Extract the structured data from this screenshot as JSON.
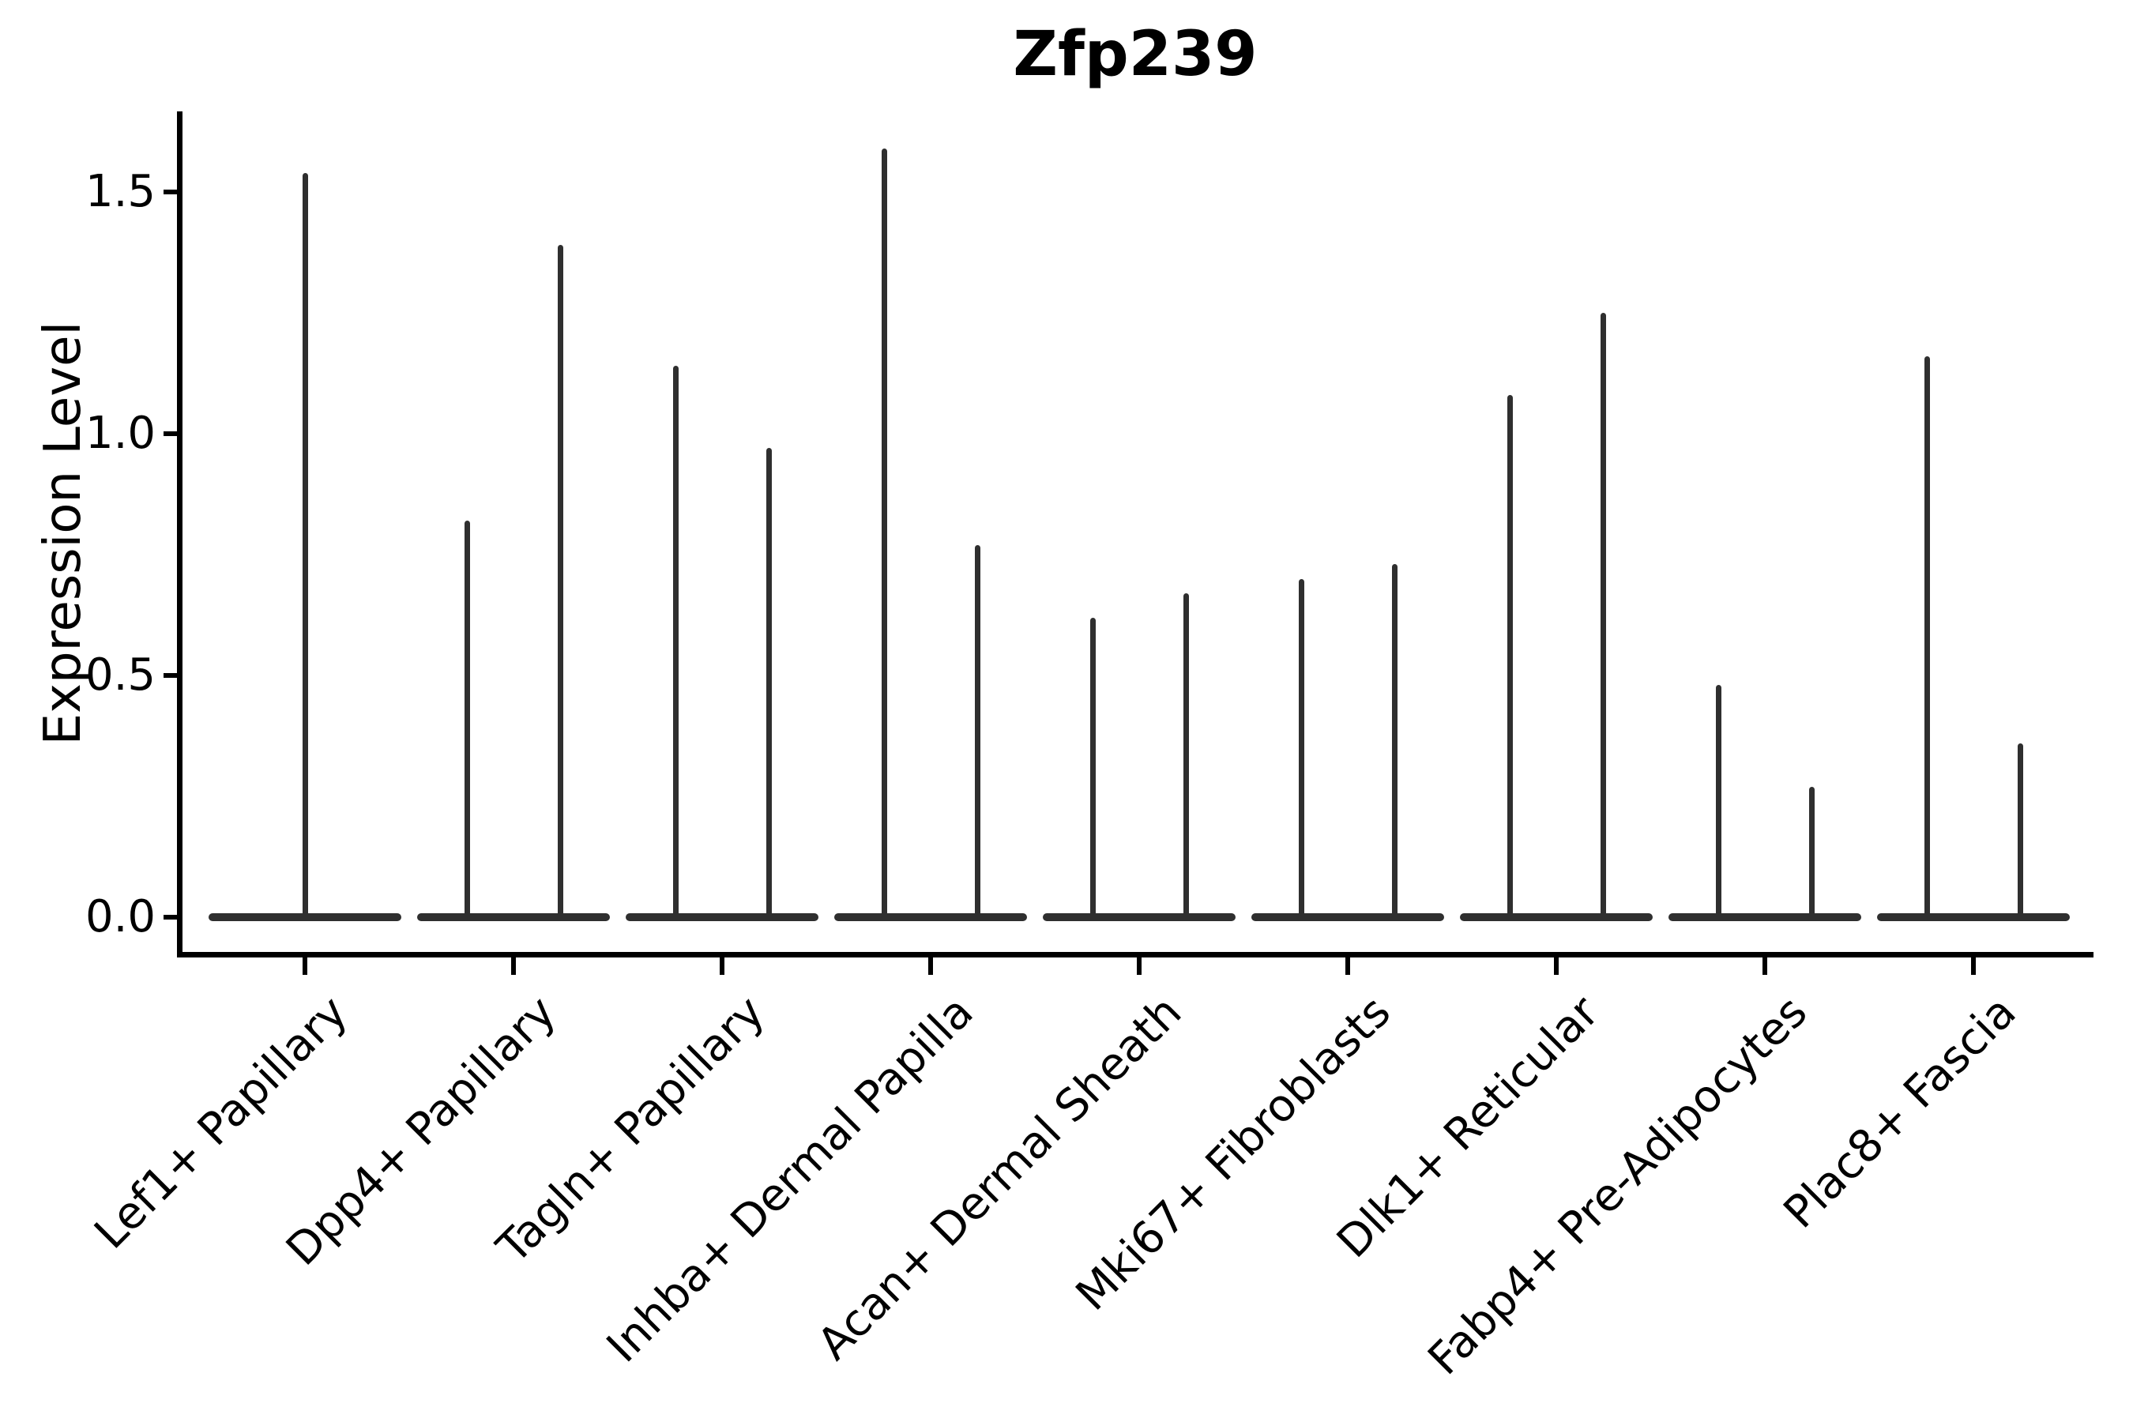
{
  "chart_data": {
    "type": "violin",
    "title": "Zfp239",
    "ylabel": "Expression Level",
    "xlabel": "",
    "ylim": [
      -0.08,
      1.67
    ],
    "yticks": [
      {
        "label": "0.0",
        "value": 0.0
      },
      {
        "label": "0.5",
        "value": 0.5
      },
      {
        "label": "1.0",
        "value": 1.0
      },
      {
        "label": "1.5",
        "value": 1.5
      }
    ],
    "baseline_value": 0.0,
    "violin_shape": "flat-at-zero-with-thin-spike-to-max",
    "violin_color": "#2f2f2f",
    "axis_color": "#000000",
    "legend": "none",
    "grid": "off",
    "xtick_label_rotation_deg": 45,
    "categories": [
      {
        "label": "Lef1+ Papillary",
        "spike_max_values": [
          1.54
        ]
      },
      {
        "label": "Dpp4+ Papillary",
        "spike_max_values": [
          0.82,
          1.39
        ]
      },
      {
        "label": "Tagln+ Papillary",
        "spike_max_values": [
          1.14,
          0.97
        ]
      },
      {
        "label": "Inhba+ Dermal Papilla",
        "spike_max_values": [
          1.59,
          0.77
        ]
      },
      {
        "label": "Acan+ Dermal Sheath",
        "spike_max_values": [
          0.62,
          0.67
        ]
      },
      {
        "label": "Mki67+ Fibroblasts",
        "spike_max_values": [
          0.7,
          0.73
        ]
      },
      {
        "label": "Dlk1+ Reticular",
        "spike_max_values": [
          1.08,
          1.25
        ]
      },
      {
        "label": "Fabp4+ Pre-Adipocytes",
        "spike_max_values": [
          0.48,
          0.27
        ]
      },
      {
        "label": "Plac8+ Fascia",
        "spike_max_values": [
          1.16,
          0.36
        ]
      }
    ]
  }
}
